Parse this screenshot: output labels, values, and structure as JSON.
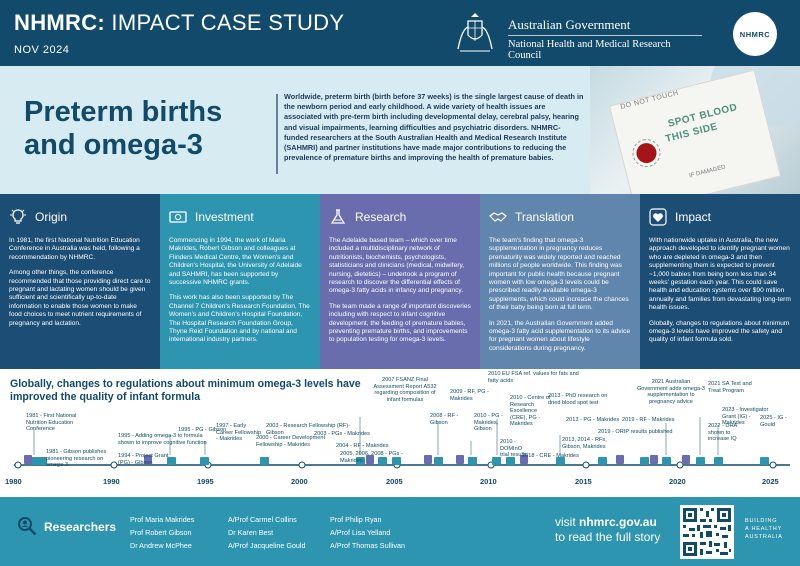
{
  "header": {
    "title_bold": "NHMRC:",
    "title_rest": " IMPACT CASE STUDY",
    "date": "NOV 2024",
    "gov_line1": "Australian Government",
    "gov_line2": "National Health and Medical Research Council",
    "badge": "NHMRC"
  },
  "hero": {
    "heading_line1": "Preterm births",
    "heading_line2": "and omega-3",
    "intro": "Worldwide, preterm birth (birth before 37 weeks) is the single largest cause of death in the newborn period and early childhood. A wide variety of health issues are associated with pre-term birth including developmental delay, cerebral palsy, hearing and visual impairments, learning difficulties and psychiatric disorders. NHMRC-funded researchers at the South Australian Health and Medical Research Institute (SAHMRI) and partner institutions have made major contributions to reducing the prevalence of premature births and improving the health of premature babies.",
    "photo_text1": "SPOT BLOOD",
    "photo_text2": "THIS SIDE",
    "photo_text3": "DO NOT TOUCH",
    "photo_text4": "IF DAMAGED"
  },
  "columns": [
    {
      "title": "Origin",
      "icon": "lightbulb-icon",
      "paragraphs": [
        "In 1981, the first National Nutrition Education Conference in Australia was held, following a recommendation by NHMRC.",
        "Among other things, the conference recommended that those providing direct care to pregnant and lactating women should be given sufficient and scientifically up-to-date information to enable those women to make food choices to meet nutrient requirements of pregnancy and lactation."
      ]
    },
    {
      "title": "Investment",
      "icon": "money-icon",
      "paragraphs": [
        "Commencing in 1994, the work of Maria Makrides, Robert Gibson and colleagues at Flinders Medical Centre, the Women's and Children's Hospital, the University of Adelaide and SAHMRI, has been supported by successive NHMRC grants.",
        "This work has also been supported by The Channel 7 Children's Research Foundation, The Women's and Children's Hospital Foundation, The Hospital Research Foundation Group, Thyne Reid Foundation and by national and international industry partners."
      ]
    },
    {
      "title": "Research",
      "icon": "flask-icon",
      "paragraphs": [
        "The Adelaide based team – which over time included a multidisciplinary network of nutritionists, biochemists, psychologists, statisticians and clinicians (medical, midwifery, nursing, dietetics) – undertook a program of research to discover the differential effects of omega-3 fatty acids in infancy and pregnancy.",
        "The team made a range of important discoveries including with respect to infant cognitive development, the feeding of premature babies, preventing premature births, and improvements to population testing for omega-3 levels."
      ]
    },
    {
      "title": "Translation",
      "icon": "handshake-icon",
      "paragraphs": [
        "The team's finding that omega-3 supplementation in pregnancy reduces prematurity was widely reported and reached millions of people worldwide. This finding was important for public health because pregnant women with low omega-3 levels could be prescribed readily available omega-3 supplements, which could increase the chances of their baby being born at full term.",
        "In 2021, the Australian Government added omega-3 fatty acid supplementation to its advice for pregnant women about lifestyle considerations during pregnancy."
      ]
    },
    {
      "title": "Impact",
      "icon": "heart-icon",
      "paragraphs": [
        "With nationwide uptake in Australia, the new approach developed to identify pregnant women who are depleted in omega-3 and then supplementing them is expected to prevent ~1,000 babies from being born less than 34 weeks' gestation each year. This could save health and education systems over $90 million annually and families from devastating long-term health issues.",
        "Globally, changes to regulations about minimum omega-3 levels have improved the safety and quality of infant formula sold."
      ]
    }
  ],
  "timeline": {
    "title": "Globally, changes to regulations about minimum omega-3 levels have improved the quality of infant formula",
    "years": [
      "1980",
      "1990",
      "1995",
      "2000",
      "2005",
      "2010",
      "2015",
      "2020",
      "2025"
    ],
    "events": [
      "1981 - First National Nutrition Education Conference",
      "1981 - Gibson publishes pioneering research on omega-3",
      "1994 - Project Grant (PG) - Gibson",
      "1995 - Adding omega-3 to formula shown to improve cognitive function",
      "1995 - PG - Gibson",
      "1997 - Early Career Fellowship - Makrides",
      "2000 - Career Development Fellowship - Makrides",
      "2003 - Research Fellowship (RF)- Gibson",
      "2003 - PGs - Makrides",
      "2004 - RF - Makrides",
      "2005, 2006, 2008 - PGs - Makrides",
      "2007 FSANZ Final Assessment Report A532 regarding composition of infant formulas",
      "2008 - RF - Gibson",
      "2009 - RF, PG - Makrides",
      "2010 EU FSA ref. values for fats and fatty acids",
      "2010 - PG - Makrides, Gibson",
      "2010 - DOMInO trial results",
      "2010 - Centre of Research Excellence (CRE), PG - Makrides",
      "2013 - PhD research on dried blood spot test",
      "2013 - PG - Makrides",
      "2013, 2014 - RFs, Gibson, Makrides",
      "2018 - CRE - Makrides",
      "2019 - ORIP results published",
      "2019 - RF - Makrides",
      "2021 Australian Government adds omega-3 supplementation to pregnancy advice",
      "2022 - DHA shown to increase IQ",
      "2021 SA Test and Treat Program",
      "2023 - Investigator Grant (IG) - Makrides",
      "2025 - IG - Gould"
    ]
  },
  "footer": {
    "researchers_label": "Researchers",
    "names_col1": [
      "Prof Maria Makrides",
      "Prof Robert Gibson",
      "Dr Andrew McPhee"
    ],
    "names_col2": [
      "A/Prof Carmel Collins",
      "Dr Karen Best",
      "A/Prof Jacqueline Gould"
    ],
    "names_col3": [
      "Prof Philip Ryan",
      "A/Prof Lisa Yelland",
      "A/Prof Thomas Sullivan"
    ],
    "visit_prefix": "visit ",
    "visit_url": "nhmrc.gov.au",
    "visit_line2": "to read the full story",
    "tagline1": "BUILDING",
    "tagline2": "A HEALTHY",
    "tagline3": "AUSTRALIA"
  },
  "colors": {
    "navy": "#114a6b",
    "teal": "#2e95b1",
    "purple": "#6a6dad",
    "slate": "#6086ae",
    "hero_bg": "#d7ecf2"
  }
}
